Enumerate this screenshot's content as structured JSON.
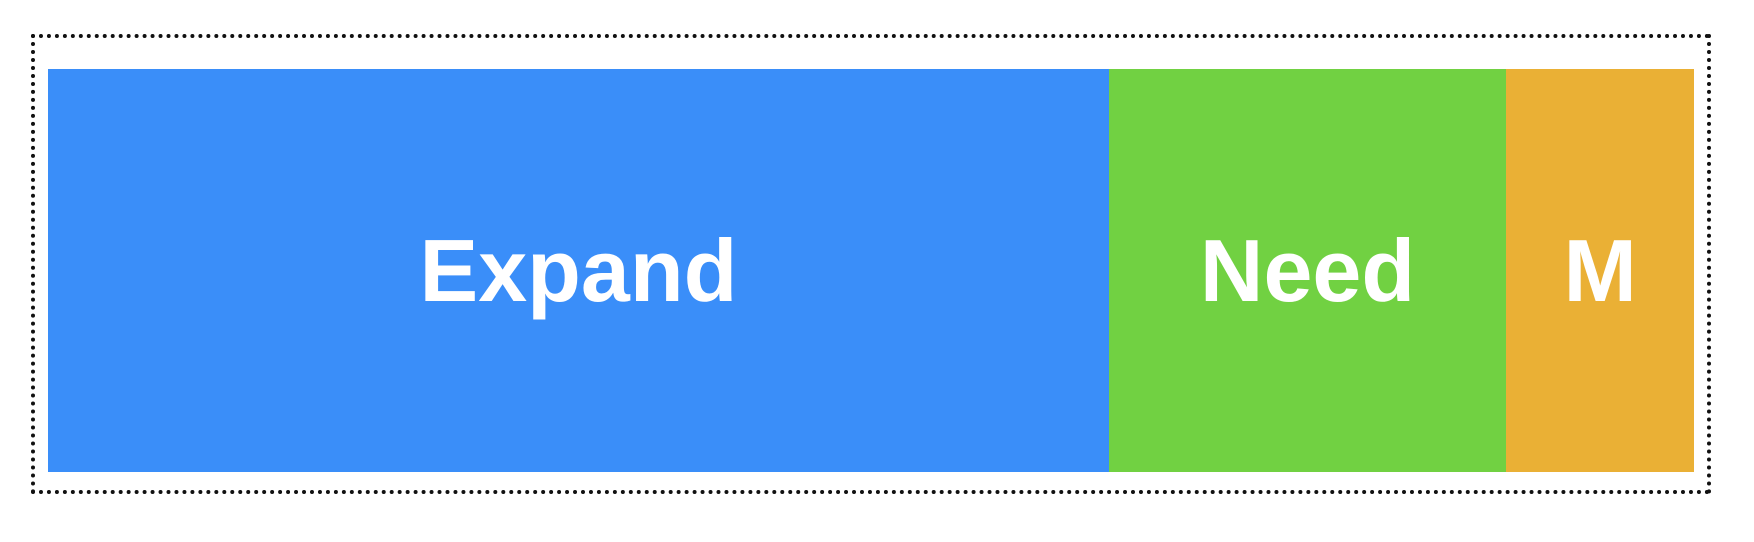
{
  "segments": [
    {
      "label": "Expand",
      "color": "#3a8ef9",
      "share": 0.6445
    },
    {
      "label": "Need",
      "color": "#71d142",
      "share": 0.2414
    },
    {
      "label": "M",
      "color": "#eab035",
      "share": 0.1141
    }
  ]
}
